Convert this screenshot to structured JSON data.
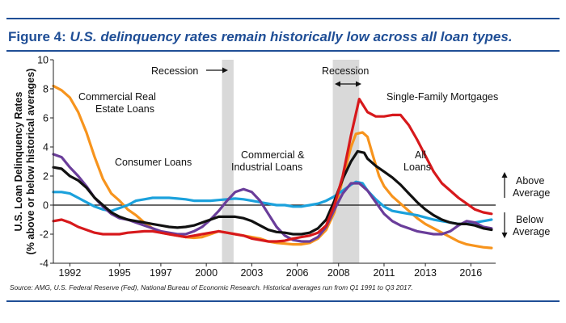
{
  "title_lead": "Figure 4:",
  "title_rest": "U.S. delinquency rates remain historically low across all loan types.",
  "source": "Source: AMG, U.S. Federal Reserve (Fed), National Bureau of Economic Research. Historical averages run from Q1 1991 to Q3 2017.",
  "chart_data": {
    "type": "line",
    "ylabel_line1": "U.S. Loan Delinquency Rates",
    "ylabel_line2": "(% above or below historical averages)",
    "ylim": [
      -4,
      10
    ],
    "yticks": [
      -4,
      -2,
      0,
      2,
      4,
      6,
      8,
      10
    ],
    "xlim": [
      1991,
      2017.75
    ],
    "xticks": [
      {
        "value": 1992,
        "label": "1992"
      },
      {
        "value": 1995,
        "label": "1995"
      },
      {
        "value": 1997.5,
        "label": "1997"
      },
      {
        "value": 2000.25,
        "label": "2000"
      },
      {
        "value": 2003,
        "label": "2003"
      },
      {
        "value": 2005.75,
        "label": "2006"
      },
      {
        "value": 2008.25,
        "label": "2008"
      },
      {
        "value": 2011,
        "label": "2011"
      },
      {
        "value": 2013.5,
        "label": "2013"
      },
      {
        "value": 2016.25,
        "label": "2016"
      }
    ],
    "grid": false,
    "recessions": [
      {
        "start": 2001.2,
        "end": 2001.9,
        "label": "Recession"
      },
      {
        "start": 2007.9,
        "end": 2009.5,
        "label": "Recession"
      }
    ],
    "side_labels": {
      "above": [
        "Above",
        "Average"
      ],
      "below": [
        "Below",
        "Average"
      ]
    },
    "series": [
      {
        "name": "Commercial Real Estate Loans",
        "label_lines": [
          "Commercial Real",
          "Estate Loans"
        ],
        "color": "#f7941d",
        "points": [
          [
            1991,
            8.2
          ],
          [
            1991.5,
            7.9
          ],
          [
            1992,
            7.4
          ],
          [
            1992.5,
            6.4
          ],
          [
            1993,
            5.0
          ],
          [
            1993.5,
            3.3
          ],
          [
            1994,
            1.8
          ],
          [
            1994.5,
            0.8
          ],
          [
            1995,
            0.3
          ],
          [
            1995.5,
            -0.3
          ],
          [
            1996,
            -0.7
          ],
          [
            1996.5,
            -1.2
          ],
          [
            1997,
            -1.6
          ],
          [
            1997.5,
            -1.9
          ],
          [
            1998,
            -2.0
          ],
          [
            1998.5,
            -2.1
          ],
          [
            1999,
            -2.2
          ],
          [
            1999.5,
            -2.25
          ],
          [
            2000,
            -2.2
          ],
          [
            2000.5,
            -2.0
          ],
          [
            2001,
            -1.8
          ],
          [
            2001.5,
            -1.9
          ],
          [
            2002,
            -2.0
          ],
          [
            2002.5,
            -2.1
          ],
          [
            2003,
            -2.2
          ],
          [
            2003.5,
            -2.3
          ],
          [
            2004,
            -2.5
          ],
          [
            2004.5,
            -2.6
          ],
          [
            2005,
            -2.65
          ],
          [
            2005.5,
            -2.7
          ],
          [
            2006,
            -2.7
          ],
          [
            2006.5,
            -2.6
          ],
          [
            2007,
            -2.3
          ],
          [
            2007.5,
            -1.7
          ],
          [
            2008,
            -0.5
          ],
          [
            2008.5,
            1.8
          ],
          [
            2009,
            4.0
          ],
          [
            2009.3,
            4.9
          ],
          [
            2009.7,
            5.0
          ],
          [
            2010,
            4.7
          ],
          [
            2010.3,
            3.5
          ],
          [
            2010.7,
            2.0
          ],
          [
            2011,
            1.3
          ],
          [
            2011.5,
            0.6
          ],
          [
            2012,
            0.1
          ],
          [
            2012.5,
            -0.4
          ],
          [
            2013,
            -0.9
          ],
          [
            2013.5,
            -1.3
          ],
          [
            2014,
            -1.6
          ],
          [
            2014.5,
            -1.9
          ],
          [
            2015,
            -2.2
          ],
          [
            2015.5,
            -2.5
          ],
          [
            2016,
            -2.7
          ],
          [
            2016.5,
            -2.8
          ],
          [
            2017,
            -2.9
          ],
          [
            2017.5,
            -2.95
          ]
        ]
      },
      {
        "name": "Consumer Loans",
        "label_lines": [
          "Consumer Loans"
        ],
        "color": "#1ba1dc",
        "points": [
          [
            1991,
            0.9
          ],
          [
            1991.5,
            0.9
          ],
          [
            1992,
            0.8
          ],
          [
            1992.5,
            0.5
          ],
          [
            1993,
            0.2
          ],
          [
            1993.5,
            -0.1
          ],
          [
            1994,
            -0.3
          ],
          [
            1994.5,
            -0.4
          ],
          [
            1995,
            -0.2
          ],
          [
            1995.5,
            0.0
          ],
          [
            1996,
            0.3
          ],
          [
            1996.5,
            0.4
          ],
          [
            1997,
            0.5
          ],
          [
            1997.5,
            0.5
          ],
          [
            1998,
            0.5
          ],
          [
            1998.5,
            0.45
          ],
          [
            1999,
            0.4
          ],
          [
            1999.5,
            0.3
          ],
          [
            2000,
            0.3
          ],
          [
            2000.5,
            0.3
          ],
          [
            2001,
            0.35
          ],
          [
            2001.5,
            0.4
          ],
          [
            2002,
            0.45
          ],
          [
            2002.5,
            0.4
          ],
          [
            2003,
            0.3
          ],
          [
            2003.5,
            0.2
          ],
          [
            2004,
            0.1
          ],
          [
            2004.5,
            0.0
          ],
          [
            2005,
            0.0
          ],
          [
            2005.5,
            -0.1
          ],
          [
            2006,
            -0.1
          ],
          [
            2006.5,
            0.0
          ],
          [
            2007,
            0.1
          ],
          [
            2007.5,
            0.3
          ],
          [
            2008,
            0.6
          ],
          [
            2008.5,
            1.0
          ],
          [
            2009,
            1.4
          ],
          [
            2009.3,
            1.6
          ],
          [
            2009.7,
            1.5
          ],
          [
            2010,
            1.0
          ],
          [
            2010.5,
            0.4
          ],
          [
            2011,
            -0.1
          ],
          [
            2011.5,
            -0.4
          ],
          [
            2012,
            -0.5
          ],
          [
            2012.5,
            -0.6
          ],
          [
            2013,
            -0.7
          ],
          [
            2013.5,
            -0.85
          ],
          [
            2014,
            -1.0
          ],
          [
            2014.5,
            -1.1
          ],
          [
            2015,
            -1.2
          ],
          [
            2015.5,
            -1.3
          ],
          [
            2016,
            -1.3
          ],
          [
            2016.5,
            -1.2
          ],
          [
            2017,
            -1.1
          ],
          [
            2017.5,
            -1.0
          ]
        ]
      },
      {
        "name": "Commercial & Industrial Loans",
        "label_lines": [
          "Commercial &",
          "Industrial Loans"
        ],
        "color": "#6a3d9a",
        "points": [
          [
            1991,
            3.5
          ],
          [
            1991.5,
            3.3
          ],
          [
            1992,
            2.6
          ],
          [
            1992.5,
            2.0
          ],
          [
            1993,
            1.3
          ],
          [
            1993.5,
            0.5
          ],
          [
            1994,
            -0.1
          ],
          [
            1994.5,
            -0.6
          ],
          [
            1995,
            -0.9
          ],
          [
            1995.5,
            -1.0
          ],
          [
            1996,
            -1.2
          ],
          [
            1996.5,
            -1.4
          ],
          [
            1997,
            -1.6
          ],
          [
            1997.5,
            -1.8
          ],
          [
            1998,
            -1.9
          ],
          [
            1998.5,
            -2.0
          ],
          [
            1999,
            -2.0
          ],
          [
            1999.5,
            -1.8
          ],
          [
            2000,
            -1.5
          ],
          [
            2000.5,
            -1.0
          ],
          [
            2001,
            -0.4
          ],
          [
            2001.5,
            0.3
          ],
          [
            2002,
            0.9
          ],
          [
            2002.5,
            1.1
          ],
          [
            2003,
            0.9
          ],
          [
            2003.5,
            0.3
          ],
          [
            2004,
            -0.6
          ],
          [
            2004.5,
            -1.5
          ],
          [
            2005,
            -2.1
          ],
          [
            2005.5,
            -2.4
          ],
          [
            2006,
            -2.5
          ],
          [
            2006.5,
            -2.5
          ],
          [
            2007,
            -2.2
          ],
          [
            2007.5,
            -1.5
          ],
          [
            2008,
            -0.3
          ],
          [
            2008.5,
            0.8
          ],
          [
            2009,
            1.5
          ],
          [
            2009.5,
            1.5
          ],
          [
            2010,
            1.0
          ],
          [
            2010.5,
            0.2
          ],
          [
            2011,
            -0.6
          ],
          [
            2011.5,
            -1.1
          ],
          [
            2012,
            -1.4
          ],
          [
            2012.5,
            -1.6
          ],
          [
            2013,
            -1.8
          ],
          [
            2013.5,
            -1.9
          ],
          [
            2014,
            -2.0
          ],
          [
            2014.5,
            -2.0
          ],
          [
            2015,
            -1.8
          ],
          [
            2015.5,
            -1.4
          ],
          [
            2016,
            -1.1
          ],
          [
            2016.5,
            -1.2
          ],
          [
            2017,
            -1.5
          ],
          [
            2017.5,
            -1.6
          ]
        ]
      },
      {
        "name": "All Loans",
        "label_lines": [
          "All",
          "Loans"
        ],
        "color": "#111111",
        "points": [
          [
            1991,
            2.6
          ],
          [
            1991.5,
            2.5
          ],
          [
            1992,
            2.0
          ],
          [
            1992.5,
            1.7
          ],
          [
            1993,
            1.2
          ],
          [
            1993.5,
            0.5
          ],
          [
            1994,
            0.0
          ],
          [
            1994.5,
            -0.5
          ],
          [
            1995,
            -0.8
          ],
          [
            1995.5,
            -1.0
          ],
          [
            1996,
            -1.1
          ],
          [
            1996.5,
            -1.2
          ],
          [
            1997,
            -1.3
          ],
          [
            1997.5,
            -1.4
          ],
          [
            1998,
            -1.5
          ],
          [
            1998.5,
            -1.55
          ],
          [
            1999,
            -1.5
          ],
          [
            1999.5,
            -1.4
          ],
          [
            2000,
            -1.2
          ],
          [
            2000.5,
            -1.0
          ],
          [
            2001,
            -0.8
          ],
          [
            2001.5,
            -0.8
          ],
          [
            2002,
            -0.8
          ],
          [
            2002.5,
            -0.9
          ],
          [
            2003,
            -1.1
          ],
          [
            2003.5,
            -1.4
          ],
          [
            2004,
            -1.7
          ],
          [
            2004.5,
            -1.85
          ],
          [
            2005,
            -1.9
          ],
          [
            2005.5,
            -2.0
          ],
          [
            2006,
            -2.0
          ],
          [
            2006.5,
            -1.9
          ],
          [
            2007,
            -1.6
          ],
          [
            2007.5,
            -1.0
          ],
          [
            2008,
            0.3
          ],
          [
            2008.5,
            1.8
          ],
          [
            2009,
            3.0
          ],
          [
            2009.4,
            3.7
          ],
          [
            2009.8,
            3.6
          ],
          [
            2010,
            3.2
          ],
          [
            2010.5,
            2.7
          ],
          [
            2011,
            2.3
          ],
          [
            2011.5,
            1.9
          ],
          [
            2012,
            1.4
          ],
          [
            2012.5,
            0.8
          ],
          [
            2013,
            0.2
          ],
          [
            2013.5,
            -0.3
          ],
          [
            2014,
            -0.7
          ],
          [
            2014.5,
            -1.0
          ],
          [
            2015,
            -1.2
          ],
          [
            2015.5,
            -1.3
          ],
          [
            2016,
            -1.3
          ],
          [
            2016.5,
            -1.4
          ],
          [
            2017,
            -1.6
          ],
          [
            2017.5,
            -1.7
          ]
        ]
      },
      {
        "name": "Single-Family Mortgages",
        "label_lines": [
          "Single-Family Mortgages"
        ],
        "color": "#d7191c",
        "points": [
          [
            1991,
            -1.1
          ],
          [
            1991.5,
            -1.0
          ],
          [
            1992,
            -1.2
          ],
          [
            1992.5,
            -1.5
          ],
          [
            1993,
            -1.7
          ],
          [
            1993.5,
            -1.9
          ],
          [
            1994,
            -2.0
          ],
          [
            1994.5,
            -2.0
          ],
          [
            1995,
            -2.0
          ],
          [
            1995.5,
            -1.9
          ],
          [
            1996,
            -1.85
          ],
          [
            1996.5,
            -1.8
          ],
          [
            1997,
            -1.8
          ],
          [
            1997.5,
            -1.9
          ],
          [
            1998,
            -2.0
          ],
          [
            1998.5,
            -2.1
          ],
          [
            1999,
            -2.2
          ],
          [
            1999.5,
            -2.1
          ],
          [
            2000,
            -2.0
          ],
          [
            2000.5,
            -1.9
          ],
          [
            2001,
            -1.8
          ],
          [
            2001.5,
            -1.9
          ],
          [
            2002,
            -2.0
          ],
          [
            2002.5,
            -2.1
          ],
          [
            2003,
            -2.3
          ],
          [
            2003.5,
            -2.4
          ],
          [
            2004,
            -2.5
          ],
          [
            2004.5,
            -2.5
          ],
          [
            2005,
            -2.45
          ],
          [
            2005.5,
            -2.3
          ],
          [
            2006,
            -2.2
          ],
          [
            2006.5,
            -2.1
          ],
          [
            2007,
            -1.9
          ],
          [
            2007.5,
            -1.4
          ],
          [
            2008,
            0.0
          ],
          [
            2008.5,
            2.0
          ],
          [
            2009,
            4.8
          ],
          [
            2009.5,
            7.3
          ],
          [
            2010,
            6.4
          ],
          [
            2010.5,
            6.1
          ],
          [
            2011,
            6.1
          ],
          [
            2011.5,
            6.2
          ],
          [
            2012,
            6.2
          ],
          [
            2012.5,
            5.5
          ],
          [
            2013,
            4.5
          ],
          [
            2013.5,
            3.4
          ],
          [
            2014,
            2.3
          ],
          [
            2014.5,
            1.5
          ],
          [
            2015,
            1.0
          ],
          [
            2015.5,
            0.5
          ],
          [
            2016,
            0.1
          ],
          [
            2016.5,
            -0.3
          ],
          [
            2017,
            -0.5
          ],
          [
            2017.5,
            -0.6
          ]
        ]
      }
    ]
  }
}
